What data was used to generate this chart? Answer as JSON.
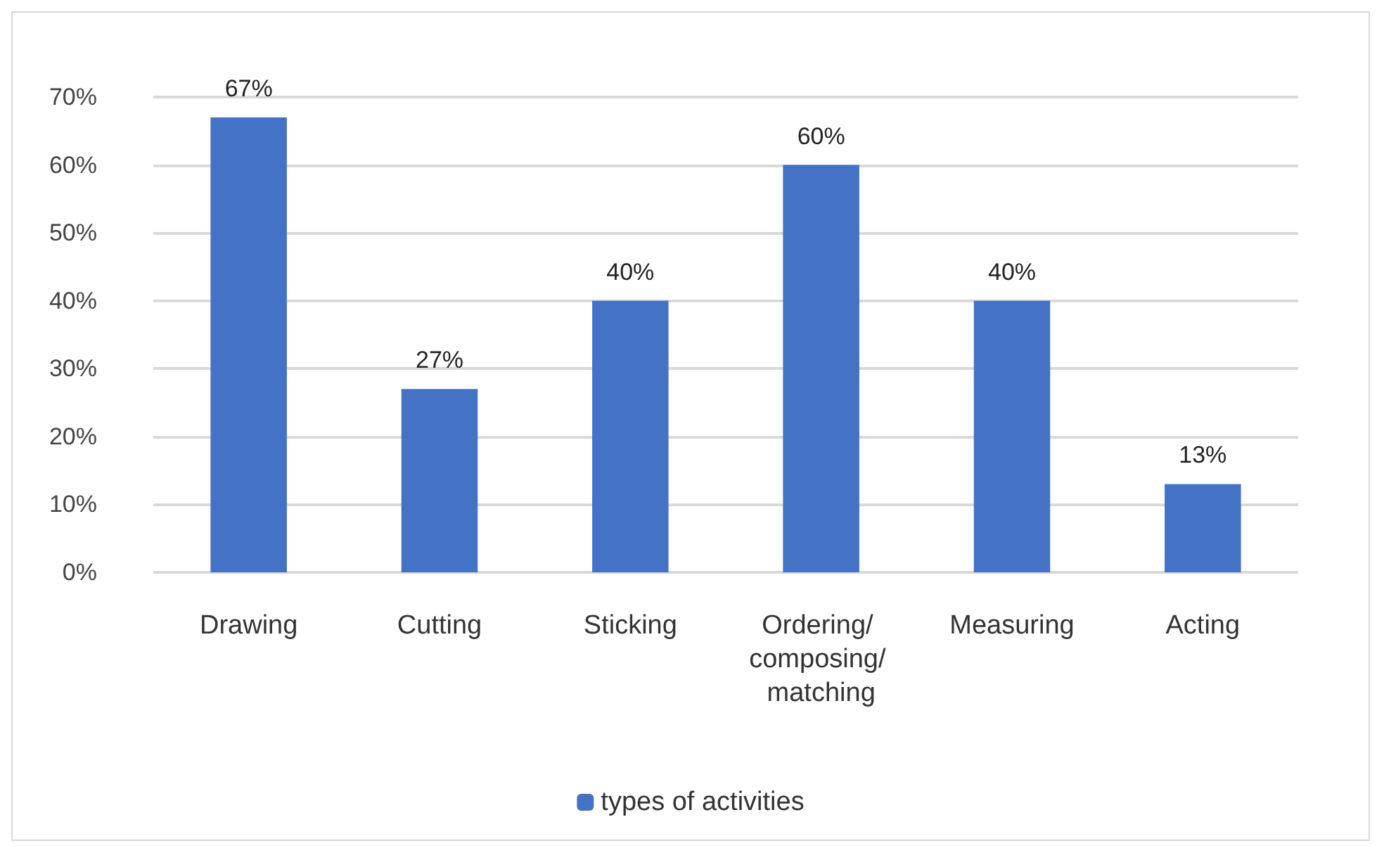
{
  "chart_data": {
    "type": "bar",
    "categories": [
      "Drawing",
      "Cutting",
      "Sticking",
      "Ordering/ composing/ matching",
      "Measuring",
      "Acting"
    ],
    "series": [
      {
        "name": "types of activities",
        "color": "#4472c4",
        "values": [
          67,
          27,
          40,
          60,
          40,
          13
        ],
        "value_labels": [
          "67%",
          "27%",
          "40%",
          "60%",
          "40%",
          "13%"
        ]
      }
    ],
    "ylim": [
      0,
      70
    ],
    "yticks": [
      {
        "value": 0,
        "label": "0%"
      },
      {
        "value": 10,
        "label": "10%"
      },
      {
        "value": 20,
        "label": "20%"
      },
      {
        "value": 30,
        "label": "30%"
      },
      {
        "value": 40,
        "label": "40%"
      },
      {
        "value": 50,
        "label": "50%"
      },
      {
        "value": 60,
        "label": "60%"
      },
      {
        "value": 70,
        "label": "70%"
      }
    ],
    "grid": "y",
    "legend": "bottom"
  }
}
